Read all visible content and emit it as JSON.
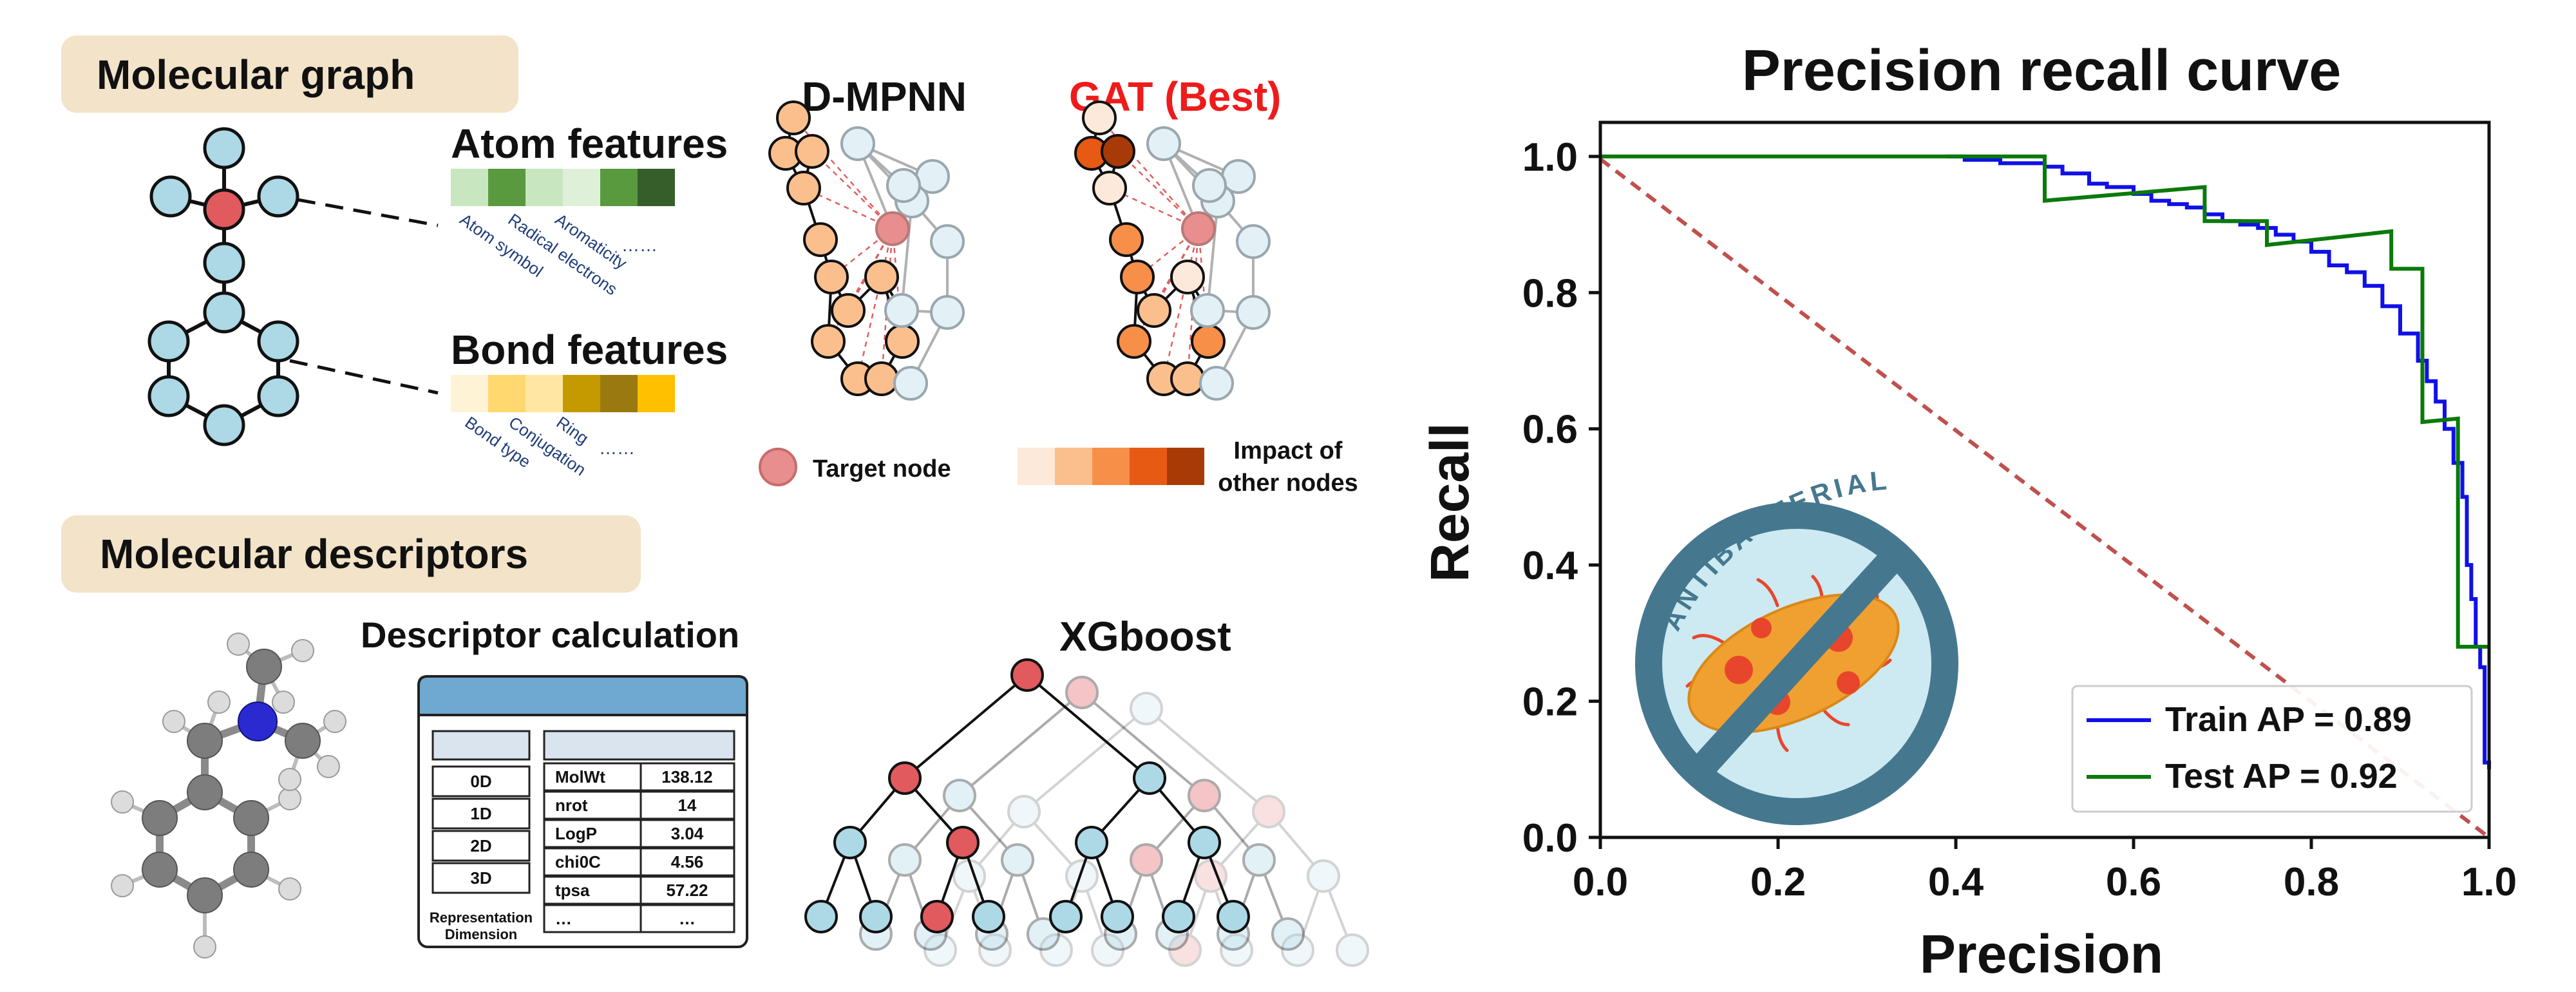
{
  "colors": {
    "atom_blue": "#add8e6",
    "atom_red": "#e05a5e",
    "target_pink": "#e88e8e",
    "pill_bg": "#f2e3c9",
    "gat_red": "#ee1b1b",
    "train_line": "#1010e8",
    "test_line": "#0a7a0a",
    "diagonal": "#c0504d",
    "label_blue": "#1f3d7a",
    "table_header": "#6fa8d0",
    "sign_ring": "#45788f",
    "sign_fill": "#cde9f2",
    "bacterium": "#f0a030"
  },
  "panel_a": {
    "molecular_graph_label": "Molecular graph",
    "atom_features": {
      "title": "Atom features",
      "colors": [
        "#c8e6c0",
        "#5a9a3e",
        "#c8e6c0",
        "#dff0d8",
        "#5a9a3e",
        "#355e2a"
      ],
      "labels": [
        "Atom symbol",
        "Radical electrons",
        "Aromaticity"
      ],
      "ellipsis": "……"
    },
    "bond_features": {
      "title": "Bond features",
      "colors": [
        "#fff3d6",
        "#ffd870",
        "#ffe7a3",
        "#c49a00",
        "#9a7a10",
        "#ffc000"
      ],
      "labels": [
        "Bond type",
        "Conjugation",
        "Ring"
      ],
      "ellipsis": "……"
    },
    "dmpnn_title": "D-MPNN",
    "gat_title": "GAT (Best)",
    "target_node_label": "Target node",
    "impact_label_line1": "Impact of",
    "impact_label_line2": "other nodes",
    "impact_scale": [
      "#fde9d9",
      "#fbbf8e",
      "#f88f48",
      "#e65a14",
      "#a83a08"
    ],
    "molecular_descriptors_label": "Molecular descriptors",
    "descriptor_calculation_title": "Descriptor calculation",
    "representation_dimension": [
      "0D",
      "1D",
      "2D",
      "3D"
    ],
    "representation_dimension_caption_line1": "Representation",
    "representation_dimension_caption_line2": "Dimension",
    "descriptors": [
      {
        "name": "MolWt",
        "value": "138.12"
      },
      {
        "name": "nrot",
        "value": "14"
      },
      {
        "name": "LogP",
        "value": "3.04"
      },
      {
        "name": "chi0C",
        "value": "4.56"
      },
      {
        "name": "tpsa",
        "value": "57.22"
      },
      {
        "name": "…",
        "value": "…"
      }
    ],
    "xgboost_title": "XGboost",
    "sign_text": "ANTIBACTERIAL"
  },
  "chart_data": {
    "type": "line",
    "title": "Precision recall curve",
    "xlabel": "Precision",
    "ylabel": "Recall",
    "xlim": [
      0,
      1
    ],
    "ylim": [
      0,
      1.05
    ],
    "xticks": [
      "0.0",
      "0.2",
      "0.4",
      "0.6",
      "0.8",
      "1.0"
    ],
    "yticks": [
      "0.0",
      "0.2",
      "0.4",
      "0.6",
      "0.8",
      "1.0"
    ],
    "legend_position": "bottom-right",
    "grid": false,
    "series": [
      {
        "name": "Train AP = 0.89",
        "color": "#1010e8",
        "x": [
          0.39,
          0.41,
          0.43,
          0.45,
          0.47,
          0.5,
          0.52,
          0.55,
          0.57,
          0.6,
          0.62,
          0.64,
          0.66,
          0.68,
          0.7,
          0.72,
          0.74,
          0.76,
          0.78,
          0.8,
          0.82,
          0.84,
          0.86,
          0.88,
          0.9,
          0.92,
          0.93,
          0.94,
          0.95,
          0.96,
          0.97,
          0.975,
          0.98,
          0.985,
          0.99,
          0.995,
          1.0
        ],
        "y": [
          1.0,
          0.995,
          0.995,
          0.99,
          0.99,
          0.985,
          0.975,
          0.96,
          0.955,
          0.945,
          0.935,
          0.93,
          0.925,
          0.915,
          0.905,
          0.9,
          0.895,
          0.885,
          0.875,
          0.86,
          0.84,
          0.83,
          0.81,
          0.78,
          0.74,
          0.7,
          0.67,
          0.64,
          0.6,
          0.55,
          0.5,
          0.4,
          0.35,
          0.28,
          0.25,
          0.11,
          0.1
        ]
      },
      {
        "name": "Test AP = 0.92",
        "color": "#0a7a0a",
        "x": [
          0.0,
          0.5,
          0.5,
          0.68,
          0.68,
          0.75,
          0.75,
          0.89,
          0.89,
          0.925,
          0.925,
          0.965,
          0.965,
          0.97,
          0.97,
          1.0
        ],
        "y": [
          1.0,
          1.0,
          0.935,
          0.955,
          0.905,
          0.905,
          0.87,
          0.89,
          0.835,
          0.835,
          0.61,
          0.615,
          0.28,
          0.28,
          0.28,
          0.28
        ]
      }
    ]
  }
}
